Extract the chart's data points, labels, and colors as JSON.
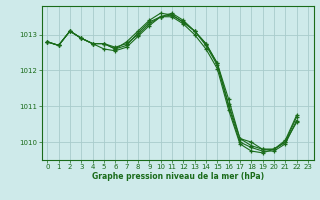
{
  "bg_color": "#ceeaea",
  "grid_color": "#a8cccc",
  "line_color": "#1a6b1a",
  "xlabel": "Graphe pression niveau de la mer (hPa)",
  "xlabel_color": "#1a6b1a",
  "tick_color": "#1a6b1a",
  "ylim": [
    1009.5,
    1013.8
  ],
  "xlim": [
    -0.5,
    23.5
  ],
  "yticks": [
    1010,
    1011,
    1012,
    1013
  ],
  "xticks": [
    0,
    1,
    2,
    3,
    4,
    5,
    6,
    7,
    8,
    9,
    10,
    11,
    12,
    13,
    14,
    15,
    16,
    17,
    18,
    19,
    20,
    21,
    22,
    23
  ],
  "series": [
    [
      1012.8,
      1012.7,
      1013.1,
      1012.9,
      1012.75,
      1012.75,
      1012.6,
      1012.7,
      1013.05,
      1013.35,
      1013.5,
      1013.55,
      1013.35,
      1013.1,
      1012.75,
      1012.2,
      1011.05,
      1010.1,
      1010.0,
      1009.8,
      1009.8,
      1010.0,
      1010.7
    ],
    [
      1012.8,
      1012.7,
      1013.1,
      1012.9,
      1012.75,
      1012.75,
      1012.6,
      1012.8,
      1013.1,
      1013.4,
      1013.6,
      1013.55,
      1013.35,
      1013.1,
      1012.75,
      1012.2,
      1011.2,
      1010.1,
      1009.9,
      1009.8,
      1009.8,
      1010.05,
      1010.75
    ],
    [
      1012.8,
      1012.7,
      1013.1,
      1012.9,
      1012.75,
      1012.6,
      1012.55,
      1012.65,
      1012.95,
      1013.25,
      1013.5,
      1013.6,
      1013.4,
      1013.1,
      1012.7,
      1012.15,
      1011.0,
      1010.0,
      1009.85,
      1009.75,
      1009.75,
      1009.95,
      1010.6
    ],
    [
      1012.8,
      1012.7,
      1013.1,
      1012.9,
      1012.75,
      1012.75,
      1012.65,
      1012.75,
      1013.0,
      1013.3,
      1013.5,
      1013.5,
      1013.3,
      1013.0,
      1012.6,
      1012.05,
      1010.9,
      1009.95,
      1009.75,
      1009.7,
      1009.8,
      1010.0,
      1010.55
    ]
  ]
}
